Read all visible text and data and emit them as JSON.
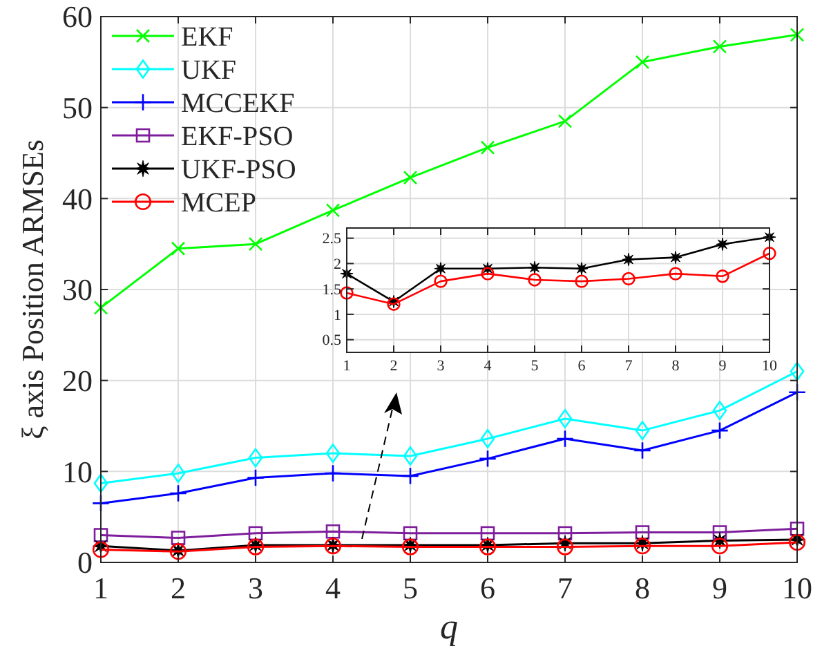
{
  "chart_data": [
    {
      "type": "line",
      "xlabel": "q",
      "ylabel": "ξ axis Position ARMSEs",
      "x": [
        1,
        2,
        3,
        4,
        5,
        6,
        7,
        8,
        9,
        10
      ],
      "xlim": [
        1,
        10
      ],
      "xticks": [
        1,
        2,
        3,
        4,
        5,
        6,
        7,
        8,
        9,
        10
      ],
      "ylim": [
        0,
        60
      ],
      "yticks": [
        0,
        10,
        20,
        30,
        40,
        50,
        60
      ],
      "grid": true,
      "legend": "top left",
      "series": [
        {
          "name": "EKF",
          "color": "#00ff00",
          "marker": "x",
          "values": [
            28,
            34.5,
            35,
            38.7,
            42.3,
            45.6,
            48.5,
            55,
            56.7,
            58
          ]
        },
        {
          "name": "UKF",
          "color": "#00ffff",
          "marker": "diamond",
          "values": [
            8.7,
            9.8,
            11.5,
            12,
            11.7,
            13.6,
            15.8,
            14.5,
            16.7,
            21
          ]
        },
        {
          "name": "MCCEKF",
          "color": "#0000ff",
          "marker": "cross",
          "values": [
            6.5,
            7.6,
            9.3,
            9.8,
            9.5,
            11.4,
            13.6,
            12.3,
            14.5,
            18.7
          ]
        },
        {
          "name": "EKF-PSO",
          "color": "#7e1e9c",
          "marker": "square",
          "values": [
            3,
            2.7,
            3.2,
            3.4,
            3.2,
            3.2,
            3.2,
            3.3,
            3.3,
            3.7
          ]
        },
        {
          "name": "UKF-PSO",
          "color": "#000000",
          "marker": "star",
          "values": [
            1.8,
            1.3,
            1.9,
            1.9,
            1.9,
            1.9,
            2.1,
            2.1,
            2.4,
            2.5
          ]
        },
        {
          "name": "MCEP",
          "color": "#ff0000",
          "marker": "circle",
          "values": [
            1.4,
            1.2,
            1.7,
            1.8,
            1.7,
            1.7,
            1.7,
            1.8,
            1.8,
            2.2
          ]
        }
      ]
    },
    {
      "type": "line",
      "x": [
        1,
        2,
        3,
        4,
        5,
        6,
        7,
        8,
        9,
        10
      ],
      "xlim": [
        1,
        10
      ],
      "xticks": [
        1,
        2,
        3,
        4,
        5,
        6,
        7,
        8,
        9,
        10
      ],
      "ylim": [
        0.25,
        2.7
      ],
      "yticks": [
        0.5,
        1,
        1.5,
        2,
        2.5
      ],
      "grid": true,
      "series": [
        {
          "color": "#000000",
          "marker": "star",
          "values": [
            1.8,
            1.25,
            1.9,
            1.9,
            1.92,
            1.9,
            2.08,
            2.12,
            2.38,
            2.52
          ]
        },
        {
          "color": "#ff0000",
          "marker": "circle",
          "values": [
            1.42,
            1.2,
            1.65,
            1.8,
            1.68,
            1.65,
            1.7,
            1.8,
            1.75,
            2.2
          ]
        }
      ]
    }
  ]
}
